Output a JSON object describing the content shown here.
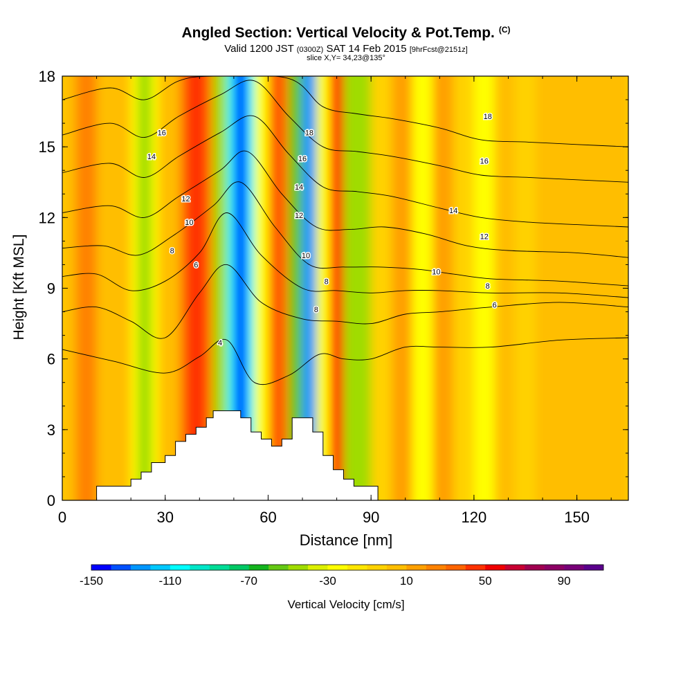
{
  "title": {
    "main": "Angled Section: Vertical Velocity & Pot.Temp.",
    "main_tag": "(C)",
    "valid_prefix": "Valid 1200 JST",
    "valid_zulu": "(0300Z)",
    "valid_date": "SAT 14 Feb 2015",
    "valid_fcst": "[9hrFcst@2151z]",
    "slice": "slice X,Y= 34,23@135°"
  },
  "chart_data": {
    "type": "heatmap",
    "xlabel": "Distance [nm]",
    "ylabel": "Height [Kft MSL]",
    "xlim": [
      0,
      165
    ],
    "ylim": [
      0,
      18
    ],
    "xticks": [
      0,
      30,
      60,
      90,
      120,
      150
    ],
    "yticks": [
      0,
      3,
      6,
      9,
      12,
      15,
      18
    ],
    "colorbar": {
      "label": "Vertical Velocity [cm/s]",
      "min": -150,
      "step": 10,
      "tick_labels": [
        -150,
        -110,
        -70,
        -30,
        10,
        50,
        90
      ],
      "colors": [
        "#0000ff",
        "#0050ff",
        "#0096ff",
        "#00c8ff",
        "#00ffff",
        "#00e6c8",
        "#00dc96",
        "#00c864",
        "#14b41e",
        "#64c814",
        "#a0dc00",
        "#dcf000",
        "#ffff00",
        "#ffe600",
        "#ffd200",
        "#ffbe00",
        "#ffa000",
        "#ff8200",
        "#ff6400",
        "#ff3200",
        "#f00000",
        "#c80032",
        "#a00050",
        "#8c0064",
        "#780078",
        "#5a008c"
      ]
    },
    "terrain": [
      [
        10,
        0
      ],
      [
        10,
        0.6
      ],
      [
        20,
        0.6
      ],
      [
        20,
        0.9
      ],
      [
        23,
        0.9
      ],
      [
        23,
        1.2
      ],
      [
        26,
        1.2
      ],
      [
        26,
        1.6
      ],
      [
        30,
        1.6
      ],
      [
        30,
        1.9
      ],
      [
        33,
        1.9
      ],
      [
        33,
        2.5
      ],
      [
        36,
        2.5
      ],
      [
        36,
        2.8
      ],
      [
        39,
        2.8
      ],
      [
        39,
        3.1
      ],
      [
        42,
        3.1
      ],
      [
        42,
        3.5
      ],
      [
        44,
        3.5
      ],
      [
        44,
        3.8
      ],
      [
        52,
        3.8
      ],
      [
        52,
        3.5
      ],
      [
        55,
        3.5
      ],
      [
        55,
        2.9
      ],
      [
        58,
        2.9
      ],
      [
        58,
        2.6
      ],
      [
        61,
        2.6
      ],
      [
        61,
        2.3
      ],
      [
        64,
        2.3
      ],
      [
        64,
        2.6
      ],
      [
        67,
        2.6
      ],
      [
        67,
        3.5
      ],
      [
        73,
        3.5
      ],
      [
        73,
        2.9
      ],
      [
        76,
        2.9
      ],
      [
        76,
        1.9
      ],
      [
        79,
        1.9
      ],
      [
        79,
        1.3
      ],
      [
        82,
        1.3
      ],
      [
        82,
        0.9
      ],
      [
        85,
        0.9
      ],
      [
        85,
        0.6
      ],
      [
        92,
        0.6
      ],
      [
        92,
        0
      ]
    ],
    "wbands": [
      {
        "x0": 0,
        "x1": 14,
        "w": 6
      },
      {
        "x0": 4,
        "x1": 10,
        "w": 20
      },
      {
        "x0": 14,
        "x1": 20,
        "w": 2
      },
      {
        "x0": 20,
        "x1": 28,
        "w": -25
      },
      {
        "x0": 22,
        "x1": 26,
        "w": -45
      },
      {
        "x0": 28,
        "x1": 34,
        "w": 5
      },
      {
        "x0": 34,
        "x1": 44,
        "w": 25
      },
      {
        "x0": 36,
        "x1": 42,
        "w": 40
      },
      {
        "x0": 44,
        "x1": 48,
        "w": -50
      },
      {
        "x0": 48,
        "x1": 56,
        "w": -110
      },
      {
        "x0": 50,
        "x1": 54,
        "w": -140
      },
      {
        "x0": 56,
        "x1": 60,
        "w": -30
      },
      {
        "x0": 60,
        "x1": 66,
        "w": 20
      },
      {
        "x0": 62,
        "x1": 64,
        "w": 40
      },
      {
        "x0": 66,
        "x1": 70,
        "w": -60
      },
      {
        "x0": 70,
        "x1": 74,
        "w": -130
      },
      {
        "x0": 74,
        "x1": 78,
        "w": -30
      },
      {
        "x0": 78,
        "x1": 82,
        "w": 45
      },
      {
        "x0": 82,
        "x1": 90,
        "w": -45
      },
      {
        "x0": 90,
        "x1": 96,
        "w": -5
      },
      {
        "x0": 96,
        "x1": 102,
        "w": 10
      },
      {
        "x0": 102,
        "x1": 108,
        "w": -25
      },
      {
        "x0": 108,
        "x1": 114,
        "w": 10
      },
      {
        "x0": 114,
        "x1": 120,
        "w": -5
      },
      {
        "x0": 120,
        "x1": 126,
        "w": -30
      },
      {
        "x0": 126,
        "x1": 132,
        "w": 8
      },
      {
        "x0": 132,
        "x1": 138,
        "w": -10
      },
      {
        "x0": 138,
        "x1": 165,
        "w": 8
      }
    ],
    "theta": [
      {
        "label": "4",
        "pts": [
          [
            0,
            6.4
          ],
          [
            15,
            5.9
          ],
          [
            30,
            5.4
          ],
          [
            40,
            6.1
          ],
          [
            48,
            6.8
          ],
          [
            56,
            5.0
          ],
          [
            66,
            5.3
          ],
          [
            75,
            6.2
          ],
          [
            82,
            6.0
          ],
          [
            90,
            6.0
          ],
          [
            100,
            6.5
          ],
          [
            110,
            6.5
          ],
          [
            125,
            6.5
          ],
          [
            145,
            6.8
          ],
          [
            165,
            6.9
          ]
        ]
      },
      {
        "label": "6",
        "pts": [
          [
            0,
            8.0
          ],
          [
            10,
            8.2
          ],
          [
            20,
            7.6
          ],
          [
            30,
            6.9
          ],
          [
            40,
            8.8
          ],
          [
            48,
            10.0
          ],
          [
            58,
            8.4
          ],
          [
            70,
            7.7
          ],
          [
            80,
            7.6
          ],
          [
            90,
            7.5
          ],
          [
            100,
            7.9
          ],
          [
            110,
            8.0
          ],
          [
            125,
            8.2
          ],
          [
            145,
            8.4
          ],
          [
            165,
            8.2
          ]
        ]
      },
      {
        "label": "8",
        "pts": [
          [
            0,
            9.5
          ],
          [
            10,
            9.6
          ],
          [
            20,
            8.9
          ],
          [
            30,
            9.3
          ],
          [
            40,
            10.5
          ],
          [
            48,
            12.2
          ],
          [
            58,
            10.4
          ],
          [
            70,
            9.0
          ],
          [
            80,
            8.9
          ],
          [
            90,
            8.8
          ],
          [
            100,
            8.9
          ],
          [
            110,
            8.9
          ],
          [
            125,
            8.8
          ],
          [
            145,
            8.8
          ],
          [
            165,
            8.6
          ]
        ]
      },
      {
        "label": "10",
        "pts": [
          [
            0,
            10.7
          ],
          [
            12,
            10.8
          ],
          [
            22,
            10.4
          ],
          [
            32,
            11.2
          ],
          [
            44,
            12.5
          ],
          [
            52,
            13.5
          ],
          [
            62,
            11.6
          ],
          [
            72,
            10.0
          ],
          [
            82,
            9.9
          ],
          [
            92,
            9.9
          ],
          [
            104,
            9.8
          ],
          [
            114,
            9.6
          ],
          [
            125,
            9.4
          ],
          [
            145,
            9.3
          ],
          [
            165,
            9.1
          ]
        ]
      },
      {
        "label": "12",
        "pts": [
          [
            0,
            12.2
          ],
          [
            14,
            12.5
          ],
          [
            24,
            12.0
          ],
          [
            34,
            12.9
          ],
          [
            46,
            14.0
          ],
          [
            54,
            14.8
          ],
          [
            64,
            13.0
          ],
          [
            74,
            11.6
          ],
          [
            84,
            11.5
          ],
          [
            94,
            11.6
          ],
          [
            106,
            11.3
          ],
          [
            118,
            10.8
          ],
          [
            130,
            10.6
          ],
          [
            150,
            10.5
          ],
          [
            165,
            10.3
          ]
        ]
      },
      {
        "label": "14",
        "pts": [
          [
            0,
            13.9
          ],
          [
            14,
            14.3
          ],
          [
            24,
            13.7
          ],
          [
            34,
            14.6
          ],
          [
            46,
            15.6
          ],
          [
            56,
            16.3
          ],
          [
            66,
            14.7
          ],
          [
            76,
            13.3
          ],
          [
            86,
            13.1
          ],
          [
            96,
            12.9
          ],
          [
            110,
            12.4
          ],
          [
            122,
            12.0
          ],
          [
            136,
            11.8
          ],
          [
            150,
            11.7
          ],
          [
            165,
            11.6
          ]
        ]
      },
      {
        "label": "16",
        "pts": [
          [
            0,
            15.5
          ],
          [
            14,
            16.0
          ],
          [
            24,
            15.4
          ],
          [
            34,
            16.3
          ],
          [
            46,
            17.2
          ],
          [
            56,
            17.8
          ],
          [
            66,
            16.3
          ],
          [
            76,
            15.0
          ],
          [
            86,
            14.8
          ],
          [
            96,
            14.6
          ],
          [
            110,
            14.2
          ],
          [
            122,
            13.8
          ],
          [
            136,
            13.7
          ],
          [
            150,
            13.6
          ],
          [
            165,
            13.5
          ]
        ]
      },
      {
        "label": "18",
        "pts": [
          [
            0,
            17.0
          ],
          [
            14,
            17.5
          ],
          [
            24,
            17.0
          ],
          [
            34,
            17.8
          ],
          [
            44,
            18.0
          ],
          [
            66,
            17.9
          ],
          [
            76,
            16.7
          ],
          [
            86,
            16.4
          ],
          [
            96,
            16.2
          ],
          [
            110,
            15.8
          ],
          [
            122,
            15.3
          ],
          [
            136,
            15.2
          ],
          [
            150,
            15.1
          ],
          [
            165,
            15.0
          ]
        ]
      }
    ],
    "labels": [
      {
        "text": "4",
        "x": 46,
        "y": 6.7
      },
      {
        "text": "6",
        "x": 39,
        "y": 10.0
      },
      {
        "text": "6",
        "x": 126,
        "y": 8.3
      },
      {
        "text": "8",
        "x": 32,
        "y": 10.6
      },
      {
        "text": "8",
        "x": 74,
        "y": 8.1
      },
      {
        "text": "8",
        "x": 77,
        "y": 9.3
      },
      {
        "text": "8",
        "x": 124,
        "y": 9.1
      },
      {
        "text": "10",
        "x": 37,
        "y": 11.8
      },
      {
        "text": "10",
        "x": 71,
        "y": 10.4
      },
      {
        "text": "10",
        "x": 109,
        "y": 9.7
      },
      {
        "text": "12",
        "x": 36,
        "y": 12.8
      },
      {
        "text": "12",
        "x": 69,
        "y": 12.1
      },
      {
        "text": "12",
        "x": 123,
        "y": 11.2
      },
      {
        "text": "14",
        "x": 26,
        "y": 14.6
      },
      {
        "text": "14",
        "x": 69,
        "y": 13.3
      },
      {
        "text": "14",
        "x": 114,
        "y": 12.3
      },
      {
        "text": "16",
        "x": 29,
        "y": 15.6
      },
      {
        "text": "16",
        "x": 70,
        "y": 14.5
      },
      {
        "text": "16",
        "x": 123,
        "y": 14.4
      },
      {
        "text": "18",
        "x": 72,
        "y": 15.6
      },
      {
        "text": "18",
        "x": 124,
        "y": 16.3
      }
    ]
  }
}
